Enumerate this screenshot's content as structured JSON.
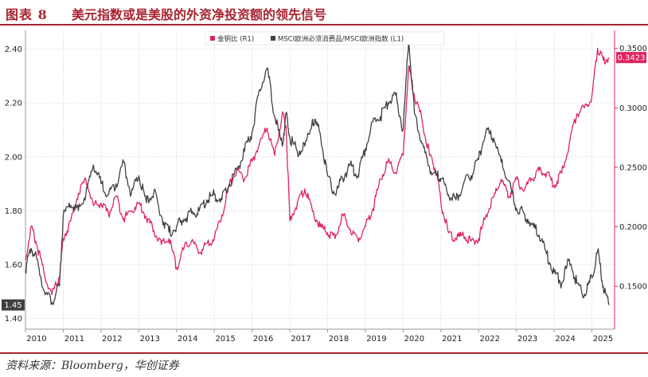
{
  "header": {
    "figure_label": "图表 8",
    "title": "美元指数或是美股的外资净投资额的领先信号"
  },
  "footer": {
    "source": "资料来源：Bloomberg，华创证券"
  },
  "chart_data": {
    "type": "line",
    "title": "美元指数或是美股的外资净投资额的领先信号",
    "x_ticks": [
      "2010",
      "2011",
      "2012",
      "2013",
      "2014",
      "2015",
      "2016",
      "2017",
      "2018",
      "2019",
      "2020",
      "2021",
      "2022",
      "2023",
      "2024",
      "2025"
    ],
    "x_range": [
      2010.0,
      2025.6
    ],
    "left_axis": {
      "ticks": [
        "1.40",
        "1.60",
        "1.80",
        "2.00",
        "2.20",
        "2.40"
      ],
      "ylim": [
        1.36,
        2.47
      ]
    },
    "right_axis": {
      "ticks": [
        "0.1500",
        "0.2000",
        "0.2500",
        "0.3000",
        "0.3500"
      ],
      "ylim": [
        0.1139,
        0.3652
      ]
    },
    "legend": [
      "金铜比 (R1)",
      "MSCI欧洲必须消费品/MSCI欧洲指数 (L1)"
    ],
    "series": [
      {
        "name": "金铜比 (R1)",
        "axis": "right",
        "color": "#e0245e",
        "x": [
          2010.0,
          2010.15,
          2010.3,
          2010.5,
          2010.7,
          2010.9,
          2011.0,
          2011.2,
          2011.4,
          2011.6,
          2011.8,
          2012.0,
          2012.2,
          2012.4,
          2012.6,
          2012.8,
          2013.0,
          2013.2,
          2013.4,
          2013.6,
          2013.8,
          2014.0,
          2014.2,
          2014.4,
          2014.6,
          2014.8,
          2015.0,
          2015.2,
          2015.4,
          2015.6,
          2015.8,
          2016.0,
          2016.2,
          2016.4,
          2016.6,
          2016.8,
          2016.9,
          2017.0,
          2017.2,
          2017.4,
          2017.6,
          2017.8,
          2018.0,
          2018.2,
          2018.4,
          2018.6,
          2018.8,
          2019.0,
          2019.2,
          2019.4,
          2019.6,
          2019.8,
          2020.0,
          2020.15,
          2020.3,
          2020.5,
          2020.7,
          2020.9,
          2021.0,
          2021.2,
          2021.4,
          2021.6,
          2021.8,
          2022.0,
          2022.2,
          2022.4,
          2022.6,
          2022.8,
          2023.0,
          2023.2,
          2023.4,
          2023.6,
          2023.8,
          2024.0,
          2024.2,
          2024.4,
          2024.6,
          2024.8,
          2025.0,
          2025.15,
          2025.3,
          2025.45
        ],
        "values": [
          0.172,
          0.2,
          0.185,
          0.16,
          0.143,
          0.158,
          0.19,
          0.205,
          0.228,
          0.24,
          0.218,
          0.22,
          0.21,
          0.226,
          0.207,
          0.213,
          0.22,
          0.208,
          0.197,
          0.185,
          0.19,
          0.166,
          0.182,
          0.188,
          0.178,
          0.186,
          0.19,
          0.21,
          0.235,
          0.248,
          0.24,
          0.255,
          0.27,
          0.283,
          0.26,
          0.295,
          0.285,
          0.205,
          0.22,
          0.232,
          0.213,
          0.2,
          0.195,
          0.19,
          0.21,
          0.198,
          0.19,
          0.2,
          0.215,
          0.24,
          0.255,
          0.245,
          0.26,
          0.335,
          0.31,
          0.29,
          0.26,
          0.245,
          0.22,
          0.195,
          0.19,
          0.193,
          0.188,
          0.19,
          0.21,
          0.225,
          0.24,
          0.225,
          0.24,
          0.23,
          0.24,
          0.247,
          0.245,
          0.235,
          0.245,
          0.27,
          0.295,
          0.3,
          0.31,
          0.35,
          0.34,
          0.3423
        ]
      },
      {
        "name": "MSCI欧洲必须消费品/MSCI欧洲指数 (L1)",
        "axis": "left",
        "color": "#404040",
        "x": [
          2010.0,
          2010.15,
          2010.3,
          2010.5,
          2010.7,
          2010.9,
          2011.0,
          2011.2,
          2011.4,
          2011.6,
          2011.8,
          2012.0,
          2012.2,
          2012.4,
          2012.6,
          2012.8,
          2013.0,
          2013.2,
          2013.4,
          2013.6,
          2013.8,
          2014.0,
          2014.2,
          2014.4,
          2014.6,
          2014.8,
          2015.0,
          2015.2,
          2015.4,
          2015.6,
          2015.8,
          2016.0,
          2016.2,
          2016.4,
          2016.6,
          2016.8,
          2016.9,
          2017.0,
          2017.2,
          2017.4,
          2017.6,
          2017.8,
          2018.0,
          2018.2,
          2018.4,
          2018.6,
          2018.8,
          2019.0,
          2019.2,
          2019.4,
          2019.6,
          2019.8,
          2020.0,
          2020.15,
          2020.3,
          2020.5,
          2020.7,
          2020.9,
          2021.0,
          2021.2,
          2021.4,
          2021.6,
          2021.8,
          2022.0,
          2022.2,
          2022.4,
          2022.6,
          2022.8,
          2023.0,
          2023.2,
          2023.4,
          2023.6,
          2023.8,
          2024.0,
          2024.2,
          2024.4,
          2024.6,
          2024.8,
          2025.0,
          2025.15,
          2025.3,
          2025.45
        ],
        "values": [
          1.58,
          1.66,
          1.62,
          1.5,
          1.46,
          1.52,
          1.78,
          1.82,
          1.8,
          1.86,
          1.97,
          1.9,
          1.86,
          1.9,
          1.98,
          1.86,
          1.93,
          1.83,
          1.87,
          1.78,
          1.72,
          1.74,
          1.77,
          1.79,
          1.8,
          1.84,
          1.86,
          1.84,
          1.9,
          1.95,
          2.02,
          2.09,
          2.25,
          2.33,
          2.15,
          2.04,
          2.16,
          2.07,
          2.02,
          2.04,
          2.14,
          2.09,
          1.93,
          1.86,
          1.92,
          1.97,
          1.93,
          2.03,
          2.13,
          2.15,
          2.2,
          2.23,
          2.1,
          2.44,
          2.16,
          2.05,
          1.96,
          1.93,
          1.92,
          1.86,
          1.84,
          1.9,
          1.93,
          1.99,
          2.1,
          2.07,
          1.98,
          1.91,
          1.81,
          1.79,
          1.75,
          1.71,
          1.64,
          1.57,
          1.53,
          1.62,
          1.53,
          1.49,
          1.55,
          1.65,
          1.52,
          1.45
        ]
      }
    ],
    "badges": [
      {
        "label": "1.45",
        "axis": "left",
        "value": 1.45,
        "color": "#404040"
      },
      {
        "label": "0.3423",
        "axis": "right",
        "value": 0.3423,
        "color": "#e0245e"
      }
    ]
  }
}
